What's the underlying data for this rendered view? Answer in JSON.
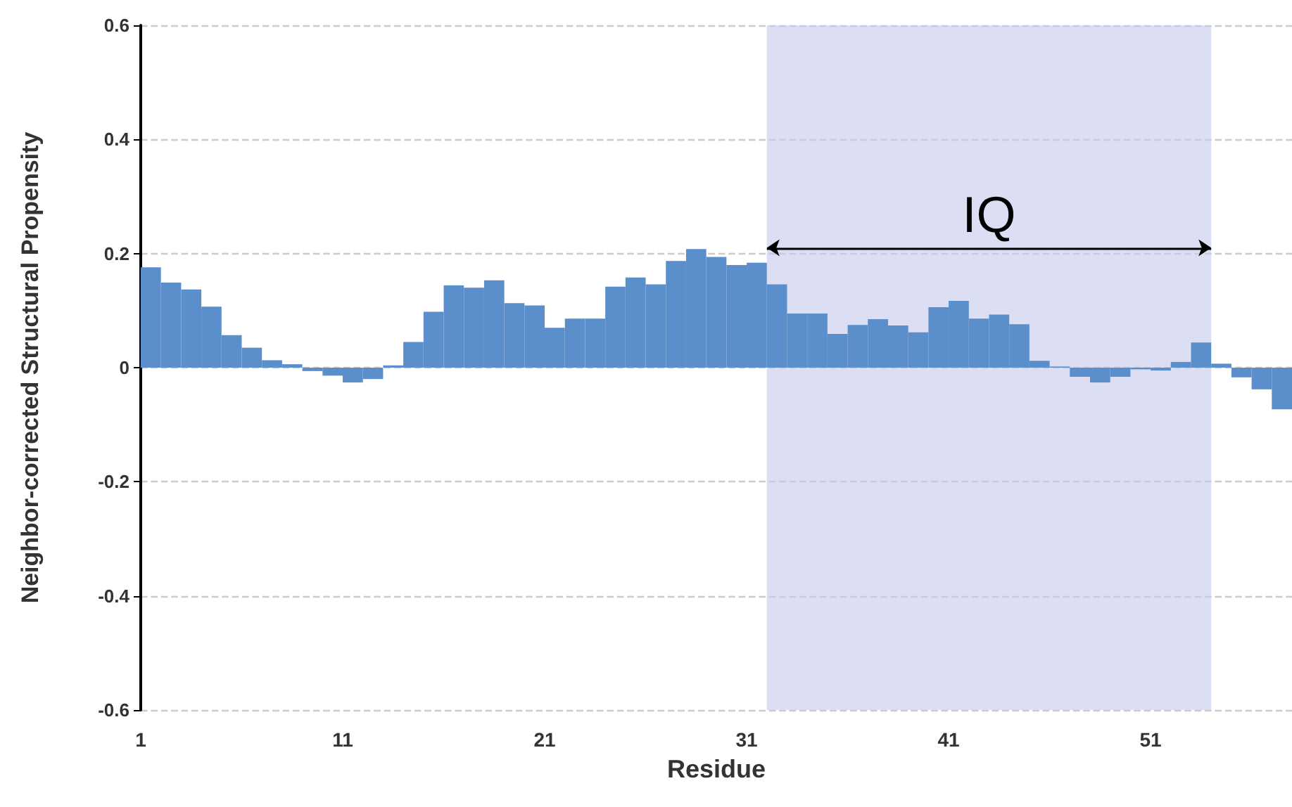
{
  "chart_data": {
    "type": "histogram",
    "xlabel": "Residue",
    "ylabel": "Neighbor-corrected Structural Propensity",
    "bins": [
      1,
      2,
      3,
      4,
      5,
      6,
      7,
      8,
      9,
      10,
      11,
      12,
      13,
      14,
      15,
      16,
      17,
      18,
      19,
      20,
      21,
      22,
      23,
      24,
      25,
      26,
      27,
      28,
      29,
      30,
      31,
      32,
      33,
      34,
      35,
      36,
      37,
      38,
      39,
      40,
      41,
      42,
      43,
      44,
      45,
      46,
      47,
      48,
      49,
      50,
      51,
      52,
      53,
      54,
      55,
      56,
      57,
      58
    ],
    "values": [
      0.176,
      0.149,
      0.137,
      0.107,
      0.057,
      0.035,
      0.013,
      0.006,
      -0.006,
      -0.014,
      -0.026,
      -0.02,
      0.004,
      0.045,
      0.098,
      0.144,
      0.14,
      0.153,
      0.113,
      0.109,
      0.07,
      0.086,
      0.086,
      0.142,
      0.158,
      0.146,
      0.187,
      0.208,
      0.194,
      0.18,
      0.184,
      0.146,
      0.095,
      0.095,
      0.059,
      0.075,
      0.085,
      0.074,
      0.062,
      0.106,
      0.117,
      0.086,
      0.093,
      0.076,
      0.012,
      0.002,
      -0.016,
      -0.026,
      -0.016,
      -0.003,
      -0.005,
      0.01,
      0.044,
      0.007,
      -0.017,
      -0.038,
      -0.073
    ],
    "color": "#5b8fcb",
    "xlim": [
      1,
      58
    ],
    "xticks": [
      1,
      11,
      21,
      31,
      41,
      51
    ],
    "ylim": [
      -0.6,
      0.6
    ],
    "yticks": [
      -0.6,
      -0.4,
      -0.2,
      0,
      0.2,
      0.4,
      0.6
    ],
    "bands": [
      {
        "axis": "x",
        "from": 32,
        "to": 54,
        "label": "IQ",
        "color": "#c5c8ec"
      }
    ],
    "grid": "y"
  }
}
